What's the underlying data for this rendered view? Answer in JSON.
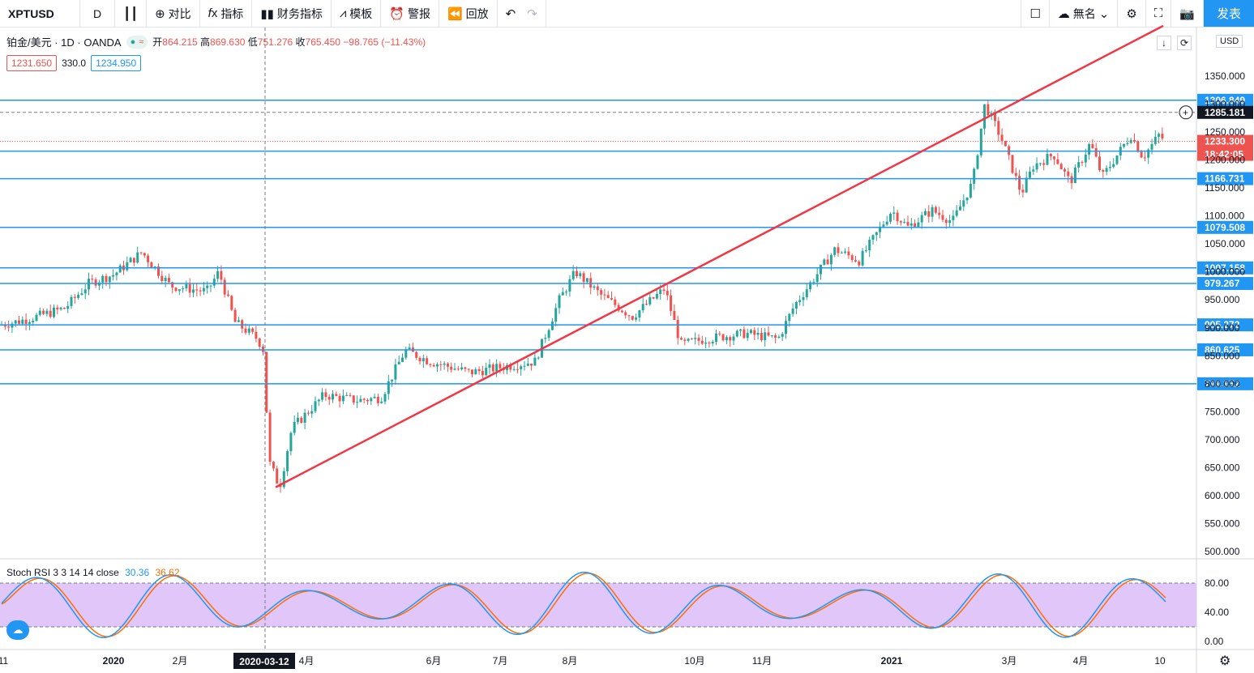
{
  "toolbar": {
    "symbol": "XPTUSD",
    "interval": "D",
    "compare": "对比",
    "indicators": "指标",
    "financials": "财务指标",
    "templates": "模板",
    "alert": "警报",
    "replay": "回放",
    "layout_name": "無名",
    "publish": "发表"
  },
  "legend": {
    "title": "铂金/美元 · 1D · OANDA",
    "open_label": "开",
    "open": "864.215",
    "high_label": "高",
    "high": "869.630",
    "low_label": "低",
    "low": "751.276",
    "close_label": "收",
    "close": "765.450",
    "change": "−98.765 (−11.43%)",
    "bid": "1231.650",
    "spread": "330.0",
    "ask": "1234.950"
  },
  "currency": "USD",
  "oscillator": {
    "name": "Stoch RSI 3 3 14 14 close",
    "k": "30.36",
    "d": "36.62",
    "k_color": "#2196f3",
    "d_color": "#ff6d00"
  },
  "colors": {
    "up": "#26a69a",
    "down": "#ef5350",
    "levels": "#2196f3",
    "trend": "#f23645",
    "osc_band": "#e1c6f9"
  },
  "chart_data": {
    "type": "candlestick",
    "y_ticks": [
      "1350.000",
      "1300.000",
      "1250.000",
      "1200.000",
      "1150.000",
      "1100.000",
      "1050.000",
      "1000.000",
      "950.000",
      "900.000",
      "850.000",
      "800.000",
      "750.000",
      "700.000",
      "650.000",
      "600.000",
      "550.000",
      "500.000"
    ],
    "ylim": [
      490,
      1445
    ],
    "x_ticks": [
      "11",
      "2020",
      "2月",
      "2020-03-12",
      "4月",
      "6月",
      "7月",
      "8月",
      "10月",
      "11月",
      "2021",
      "3月",
      "4月",
      "10"
    ],
    "horizontal_levels": [
      "1306.849",
      "1215.845",
      "1166.731",
      "1079.508",
      "1007.158",
      "979.267",
      "905.272",
      "860.625",
      "799.952"
    ],
    "current_price": "1233.300",
    "countdown": "18:42:05",
    "crosshair_price": "1285.181",
    "crosshair_date": "2020-03-12",
    "anchors": [
      [
        0,
        905
      ],
      [
        18,
        910
      ],
      [
        40,
        918
      ],
      [
        80,
        935
      ],
      [
        110,
        980
      ],
      [
        140,
        995
      ],
      [
        175,
        1035
      ],
      [
        210,
        975
      ],
      [
        255,
        965
      ],
      [
        270,
        1000
      ],
      [
        290,
        910
      ],
      [
        318,
        880
      ],
      [
        325,
        860
      ],
      [
        332,
        660
      ],
      [
        345,
        615
      ],
      [
        360,
        720
      ],
      [
        400,
        780
      ],
      [
        440,
        770
      ],
      [
        470,
        775
      ],
      [
        500,
        860
      ],
      [
        530,
        840
      ],
      [
        580,
        820
      ],
      [
        620,
        830
      ],
      [
        660,
        840
      ],
      [
        690,
        950
      ],
      [
        710,
        1000
      ],
      [
        740,
        960
      ],
      [
        780,
        920
      ],
      [
        820,
        970
      ],
      [
        840,
        870
      ],
      [
        870,
        880
      ],
      [
        920,
        890
      ],
      [
        960,
        880
      ],
      [
        980,
        940
      ],
      [
        1000,
        980
      ],
      [
        1030,
        1040
      ],
      [
        1060,
        1020
      ],
      [
        1100,
        1110
      ],
      [
        1120,
        1080
      ],
      [
        1150,
        1110
      ],
      [
        1175,
        1090
      ],
      [
        1200,
        1160
      ],
      [
        1215,
        1300
      ],
      [
        1235,
        1240
      ],
      [
        1260,
        1140
      ],
      [
        1275,
        1190
      ],
      [
        1300,
        1210
      ],
      [
        1320,
        1160
      ],
      [
        1345,
        1230
      ],
      [
        1360,
        1170
      ],
      [
        1395,
        1245
      ],
      [
        1410,
        1205
      ],
      [
        1430,
        1245
      ],
      [
        1440,
        1230
      ]
    ],
    "trendline_price": [
      [
        340,
        615
      ],
      [
        1435,
        1440
      ]
    ],
    "stoch_rsi_ticks": [
      "80.00",
      "40.00",
      "0.00"
    ]
  }
}
